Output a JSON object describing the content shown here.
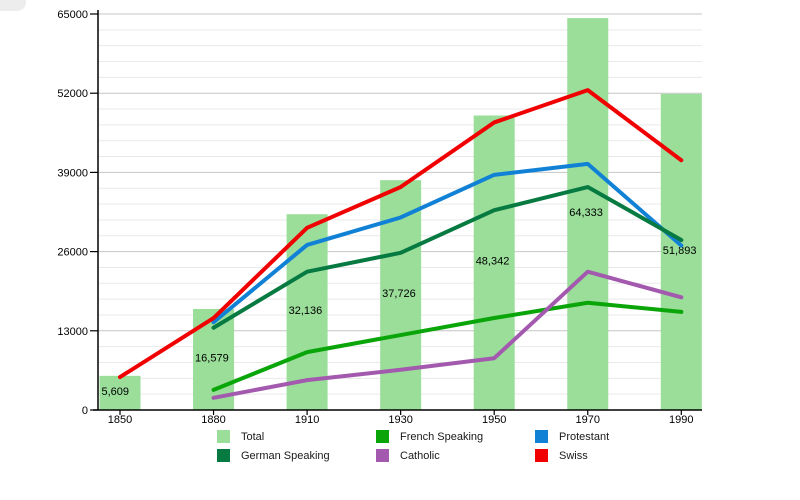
{
  "chart_data": {
    "type": "bar+line",
    "title": "",
    "xlabel": "",
    "ylabel": "",
    "categories": [
      1850,
      1880,
      1910,
      1930,
      1950,
      1970,
      1990
    ],
    "bars": {
      "name": "Total",
      "color": "#9ADE9A",
      "values": [
        5609,
        16579,
        32136,
        37726,
        48342,
        64333,
        51893
      ],
      "labels": [
        "5,609",
        "16,579",
        "32,136",
        "37,726",
        "48,342",
        "64,333",
        "51,893"
      ]
    },
    "series": [
      {
        "name": "Protestant",
        "color": "#1181D6",
        "values": [
          null,
          14400,
          27100,
          31600,
          38600,
          40400,
          27000
        ]
      },
      {
        "name": "German Speaking",
        "color": "#067A41",
        "values": [
          null,
          13500,
          22700,
          25800,
          32800,
          36600,
          27900
        ]
      },
      {
        "name": "French Speaking",
        "color": "#09A509",
        "values": [
          null,
          3300,
          9500,
          12300,
          15100,
          17600,
          16100
        ]
      },
      {
        "name": "Catholic",
        "color": "#A35AAE",
        "values": [
          null,
          2000,
          4900,
          6600,
          8500,
          22700,
          18500
        ]
      },
      {
        "name": "Swiss",
        "color": "#F00000",
        "values": [
          5400,
          15100,
          29900,
          36600,
          47200,
          52500,
          41000
        ]
      }
    ],
    "y_axis": {
      "min": 0,
      "max": 65000,
      "major_step": 13000,
      "minor_step": 2600,
      "tick_labels": [
        "0",
        "13000",
        "26000",
        "39000",
        "52000",
        "65000"
      ]
    },
    "grid": "on",
    "legend_position": "bottom",
    "legend": [
      {
        "label": "Total",
        "color": "#9ADE9A"
      },
      {
        "label": "German Speaking",
        "color": "#067A41"
      },
      {
        "label": "French Speaking",
        "color": "#09A509"
      },
      {
        "label": "Catholic",
        "color": "#A35AAE"
      },
      {
        "label": "Protestant",
        "color": "#1181D6"
      },
      {
        "label": "Swiss",
        "color": "#F00000"
      }
    ]
  }
}
